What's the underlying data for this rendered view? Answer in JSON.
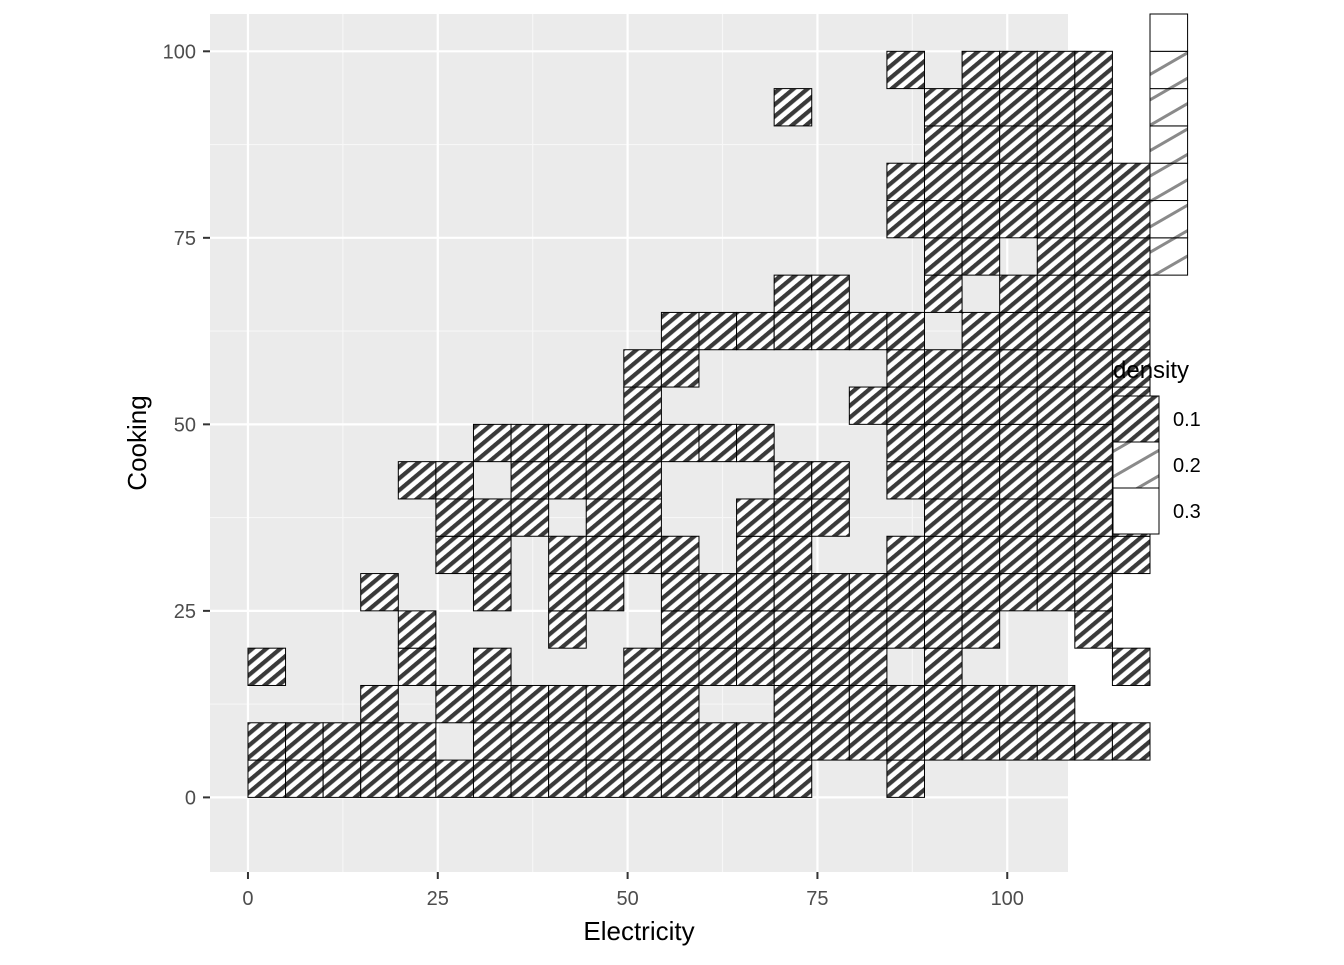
{
  "chart_data": {
    "type": "heatmap",
    "title": "",
    "xlabel": "Electricity",
    "ylabel": "Cooking",
    "xlim": [
      -5,
      108
    ],
    "ylim": [
      -10,
      105
    ],
    "x_ticks": [
      0,
      25,
      50,
      75,
      100
    ],
    "y_ticks": [
      0,
      25,
      50,
      75,
      100
    ],
    "x_tick_labels": [
      "0",
      "25",
      "50",
      "75",
      "100"
    ],
    "y_tick_labels": [
      "0",
      "25",
      "50",
      "75",
      "100"
    ],
    "grid": true,
    "bin_width_x": 4.95,
    "bin_height_y": 5,
    "x_origin": 0,
    "y_origin": 0,
    "fill_pattern": "stripe",
    "legend": {
      "title": "density",
      "position": "right",
      "entries": [
        {
          "label": "0.1",
          "pattern": "stripe-dense"
        },
        {
          "label": "0.2",
          "pattern": "stripe-sparse"
        },
        {
          "label": "0.3",
          "pattern": "none"
        }
      ]
    },
    "notes": "Each cell is a 2D bin of (Electricity, Cooking). Cells listed by column index ci (x from ci*4.95) and row index ri (y from ri*5). density: 0.1 = dense stripes, 0.2 = sparse stripes, 0.3 = empty white.",
    "cells": [
      {
        "ci": 0,
        "ri": 0,
        "density": 0.1
      },
      {
        "ci": 0,
        "ri": 1,
        "density": 0.1
      },
      {
        "ci": 0,
        "ri": 3,
        "density": 0.1
      },
      {
        "ci": 1,
        "ri": 0,
        "density": 0.1
      },
      {
        "ci": 1,
        "ri": 1,
        "density": 0.1
      },
      {
        "ci": 2,
        "ri": 0,
        "density": 0.1
      },
      {
        "ci": 2,
        "ri": 1,
        "density": 0.1
      },
      {
        "ci": 3,
        "ri": 0,
        "density": 0.1
      },
      {
        "ci": 3,
        "ri": 1,
        "density": 0.1
      },
      {
        "ci": 3,
        "ri": 2,
        "density": 0.1
      },
      {
        "ci": 3,
        "ri": 5,
        "density": 0.1
      },
      {
        "ci": 4,
        "ri": 0,
        "density": 0.1
      },
      {
        "ci": 4,
        "ri": 1,
        "density": 0.1
      },
      {
        "ci": 4,
        "ri": 3,
        "density": 0.1
      },
      {
        "ci": 4,
        "ri": 4,
        "density": 0.1
      },
      {
        "ci": 4,
        "ri": 8,
        "density": 0.1
      },
      {
        "ci": 5,
        "ri": 0,
        "density": 0.1
      },
      {
        "ci": 5,
        "ri": 2,
        "density": 0.1
      },
      {
        "ci": 5,
        "ri": 6,
        "density": 0.1
      },
      {
        "ci": 5,
        "ri": 7,
        "density": 0.1
      },
      {
        "ci": 5,
        "ri": 8,
        "density": 0.1
      },
      {
        "ci": 6,
        "ri": 0,
        "density": 0.1
      },
      {
        "ci": 6,
        "ri": 1,
        "density": 0.1
      },
      {
        "ci": 6,
        "ri": 2,
        "density": 0.1
      },
      {
        "ci": 6,
        "ri": 3,
        "density": 0.1
      },
      {
        "ci": 6,
        "ri": 5,
        "density": 0.1
      },
      {
        "ci": 6,
        "ri": 6,
        "density": 0.1
      },
      {
        "ci": 6,
        "ri": 7,
        "density": 0.1
      },
      {
        "ci": 6,
        "ri": 9,
        "density": 0.1
      },
      {
        "ci": 7,
        "ri": 0,
        "density": 0.1
      },
      {
        "ci": 7,
        "ri": 1,
        "density": 0.1
      },
      {
        "ci": 7,
        "ri": 2,
        "density": 0.1
      },
      {
        "ci": 7,
        "ri": 7,
        "density": 0.1
      },
      {
        "ci": 7,
        "ri": 8,
        "density": 0.1
      },
      {
        "ci": 7,
        "ri": 9,
        "density": 0.1
      },
      {
        "ci": 8,
        "ri": 0,
        "density": 0.1
      },
      {
        "ci": 8,
        "ri": 1,
        "density": 0.1
      },
      {
        "ci": 8,
        "ri": 2,
        "density": 0.1
      },
      {
        "ci": 8,
        "ri": 4,
        "density": 0.1
      },
      {
        "ci": 8,
        "ri": 5,
        "density": 0.1
      },
      {
        "ci": 8,
        "ri": 6,
        "density": 0.1
      },
      {
        "ci": 8,
        "ri": 8,
        "density": 0.1
      },
      {
        "ci": 8,
        "ri": 9,
        "density": 0.1
      },
      {
        "ci": 9,
        "ri": 0,
        "density": 0.1
      },
      {
        "ci": 9,
        "ri": 1,
        "density": 0.1
      },
      {
        "ci": 9,
        "ri": 2,
        "density": 0.1
      },
      {
        "ci": 9,
        "ri": 5,
        "density": 0.1
      },
      {
        "ci": 9,
        "ri": 6,
        "density": 0.1
      },
      {
        "ci": 9,
        "ri": 7,
        "density": 0.1
      },
      {
        "ci": 9,
        "ri": 8,
        "density": 0.1
      },
      {
        "ci": 9,
        "ri": 9,
        "density": 0.1
      },
      {
        "ci": 10,
        "ri": 0,
        "density": 0.1
      },
      {
        "ci": 10,
        "ri": 1,
        "density": 0.1
      },
      {
        "ci": 10,
        "ri": 2,
        "density": 0.1
      },
      {
        "ci": 10,
        "ri": 3,
        "density": 0.1
      },
      {
        "ci": 10,
        "ri": 6,
        "density": 0.1
      },
      {
        "ci": 10,
        "ri": 7,
        "density": 0.1
      },
      {
        "ci": 10,
        "ri": 8,
        "density": 0.1
      },
      {
        "ci": 10,
        "ri": 9,
        "density": 0.1
      },
      {
        "ci": 10,
        "ri": 10,
        "density": 0.1
      },
      {
        "ci": 10,
        "ri": 11,
        "density": 0.1
      },
      {
        "ci": 11,
        "ri": 0,
        "density": 0.1
      },
      {
        "ci": 11,
        "ri": 1,
        "density": 0.1
      },
      {
        "ci": 11,
        "ri": 2,
        "density": 0.1
      },
      {
        "ci": 11,
        "ri": 3,
        "density": 0.1
      },
      {
        "ci": 11,
        "ri": 4,
        "density": 0.1
      },
      {
        "ci": 11,
        "ri": 5,
        "density": 0.1
      },
      {
        "ci": 11,
        "ri": 6,
        "density": 0.1
      },
      {
        "ci": 11,
        "ri": 9,
        "density": 0.1
      },
      {
        "ci": 11,
        "ri": 11,
        "density": 0.1
      },
      {
        "ci": 11,
        "ri": 12,
        "density": 0.1
      },
      {
        "ci": 12,
        "ri": 0,
        "density": 0.1
      },
      {
        "ci": 12,
        "ri": 1,
        "density": 0.1
      },
      {
        "ci": 12,
        "ri": 3,
        "density": 0.1
      },
      {
        "ci": 12,
        "ri": 4,
        "density": 0.1
      },
      {
        "ci": 12,
        "ri": 5,
        "density": 0.1
      },
      {
        "ci": 12,
        "ri": 9,
        "density": 0.1
      },
      {
        "ci": 12,
        "ri": 12,
        "density": 0.1
      },
      {
        "ci": 13,
        "ri": 0,
        "density": 0.1
      },
      {
        "ci": 13,
        "ri": 1,
        "density": 0.1
      },
      {
        "ci": 13,
        "ri": 3,
        "density": 0.1
      },
      {
        "ci": 13,
        "ri": 4,
        "density": 0.1
      },
      {
        "ci": 13,
        "ri": 5,
        "density": 0.1
      },
      {
        "ci": 13,
        "ri": 6,
        "density": 0.1
      },
      {
        "ci": 13,
        "ri": 7,
        "density": 0.1
      },
      {
        "ci": 13,
        "ri": 9,
        "density": 0.1
      },
      {
        "ci": 13,
        "ri": 12,
        "density": 0.1
      },
      {
        "ci": 14,
        "ri": 0,
        "density": 0.1
      },
      {
        "ci": 14,
        "ri": 1,
        "density": 0.1
      },
      {
        "ci": 14,
        "ri": 2,
        "density": 0.1
      },
      {
        "ci": 14,
        "ri": 3,
        "density": 0.1
      },
      {
        "ci": 14,
        "ri": 4,
        "density": 0.1
      },
      {
        "ci": 14,
        "ri": 5,
        "density": 0.1
      },
      {
        "ci": 14,
        "ri": 6,
        "density": 0.1
      },
      {
        "ci": 14,
        "ri": 7,
        "density": 0.1
      },
      {
        "ci": 14,
        "ri": 8,
        "density": 0.1
      },
      {
        "ci": 14,
        "ri": 12,
        "density": 0.1
      },
      {
        "ci": 14,
        "ri": 13,
        "density": 0.1
      },
      {
        "ci": 14,
        "ri": 18,
        "density": 0.1
      },
      {
        "ci": 15,
        "ri": 1,
        "density": 0.1
      },
      {
        "ci": 15,
        "ri": 2,
        "density": 0.1
      },
      {
        "ci": 15,
        "ri": 3,
        "density": 0.1
      },
      {
        "ci": 15,
        "ri": 4,
        "density": 0.1
      },
      {
        "ci": 15,
        "ri": 5,
        "density": 0.1
      },
      {
        "ci": 15,
        "ri": 7,
        "density": 0.1
      },
      {
        "ci": 15,
        "ri": 8,
        "density": 0.1
      },
      {
        "ci": 15,
        "ri": 12,
        "density": 0.1
      },
      {
        "ci": 15,
        "ri": 13,
        "density": 0.1
      },
      {
        "ci": 16,
        "ri": 1,
        "density": 0.1
      },
      {
        "ci": 16,
        "ri": 2,
        "density": 0.1
      },
      {
        "ci": 16,
        "ri": 3,
        "density": 0.1
      },
      {
        "ci": 16,
        "ri": 4,
        "density": 0.1
      },
      {
        "ci": 16,
        "ri": 5,
        "density": 0.1
      },
      {
        "ci": 16,
        "ri": 10,
        "density": 0.1
      },
      {
        "ci": 16,
        "ri": 12,
        "density": 0.1
      },
      {
        "ci": 17,
        "ri": 0,
        "density": 0.1
      },
      {
        "ci": 17,
        "ri": 1,
        "density": 0.1
      },
      {
        "ci": 17,
        "ri": 2,
        "density": 0.1
      },
      {
        "ci": 17,
        "ri": 4,
        "density": 0.1
      },
      {
        "ci": 17,
        "ri": 5,
        "density": 0.1
      },
      {
        "ci": 17,
        "ri": 6,
        "density": 0.1
      },
      {
        "ci": 17,
        "ri": 8,
        "density": 0.1
      },
      {
        "ci": 17,
        "ri": 9,
        "density": 0.1
      },
      {
        "ci": 17,
        "ri": 10,
        "density": 0.1
      },
      {
        "ci": 17,
        "ri": 11,
        "density": 0.1
      },
      {
        "ci": 17,
        "ri": 12,
        "density": 0.1
      },
      {
        "ci": 17,
        "ri": 15,
        "density": 0.1
      },
      {
        "ci": 17,
        "ri": 16,
        "density": 0.1
      },
      {
        "ci": 17,
        "ri": 19,
        "density": 0.1
      },
      {
        "ci": 18,
        "ri": 1,
        "density": 0.1
      },
      {
        "ci": 18,
        "ri": 2,
        "density": 0.1
      },
      {
        "ci": 18,
        "ri": 3,
        "density": 0.1
      },
      {
        "ci": 18,
        "ri": 4,
        "density": 0.1
      },
      {
        "ci": 18,
        "ri": 5,
        "density": 0.1
      },
      {
        "ci": 18,
        "ri": 6,
        "density": 0.1
      },
      {
        "ci": 18,
        "ri": 7,
        "density": 0.1
      },
      {
        "ci": 18,
        "ri": 8,
        "density": 0.1
      },
      {
        "ci": 18,
        "ri": 9,
        "density": 0.1
      },
      {
        "ci": 18,
        "ri": 10,
        "density": 0.1
      },
      {
        "ci": 18,
        "ri": 11,
        "density": 0.1
      },
      {
        "ci": 18,
        "ri": 13,
        "density": 0.1
      },
      {
        "ci": 18,
        "ri": 14,
        "density": 0.1
      },
      {
        "ci": 18,
        "ri": 15,
        "density": 0.1
      },
      {
        "ci": 18,
        "ri": 16,
        "density": 0.1
      },
      {
        "ci": 18,
        "ri": 17,
        "density": 0.1
      },
      {
        "ci": 18,
        "ri": 18,
        "density": 0.1
      },
      {
        "ci": 19,
        "ri": 1,
        "density": 0.1
      },
      {
        "ci": 19,
        "ri": 2,
        "density": 0.1
      },
      {
        "ci": 19,
        "ri": 4,
        "density": 0.1
      },
      {
        "ci": 19,
        "ri": 5,
        "density": 0.1
      },
      {
        "ci": 19,
        "ri": 6,
        "density": 0.1
      },
      {
        "ci": 19,
        "ri": 7,
        "density": 0.1
      },
      {
        "ci": 19,
        "ri": 8,
        "density": 0.1
      },
      {
        "ci": 19,
        "ri": 9,
        "density": 0.1
      },
      {
        "ci": 19,
        "ri": 10,
        "density": 0.1
      },
      {
        "ci": 19,
        "ri": 11,
        "density": 0.1
      },
      {
        "ci": 19,
        "ri": 12,
        "density": 0.1
      },
      {
        "ci": 19,
        "ri": 14,
        "density": 0.1
      },
      {
        "ci": 19,
        "ri": 15,
        "density": 0.1
      },
      {
        "ci": 19,
        "ri": 16,
        "density": 0.1
      },
      {
        "ci": 19,
        "ri": 17,
        "density": 0.1
      },
      {
        "ci": 19,
        "ri": 18,
        "density": 0.1
      },
      {
        "ci": 19,
        "ri": 19,
        "density": 0.1
      },
      {
        "ci": 20,
        "ri": 1,
        "density": 0.1
      },
      {
        "ci": 20,
        "ri": 2,
        "density": 0.1
      },
      {
        "ci": 20,
        "ri": 5,
        "density": 0.1
      },
      {
        "ci": 20,
        "ri": 6,
        "density": 0.1
      },
      {
        "ci": 20,
        "ri": 7,
        "density": 0.1
      },
      {
        "ci": 20,
        "ri": 8,
        "density": 0.1
      },
      {
        "ci": 20,
        "ri": 9,
        "density": 0.1
      },
      {
        "ci": 20,
        "ri": 10,
        "density": 0.1
      },
      {
        "ci": 20,
        "ri": 11,
        "density": 0.1
      },
      {
        "ci": 20,
        "ri": 12,
        "density": 0.1
      },
      {
        "ci": 20,
        "ri": 13,
        "density": 0.1
      },
      {
        "ci": 20,
        "ri": 15,
        "density": 0.1
      },
      {
        "ci": 20,
        "ri": 16,
        "density": 0.1
      },
      {
        "ci": 20,
        "ri": 17,
        "density": 0.1
      },
      {
        "ci": 20,
        "ri": 18,
        "density": 0.1
      },
      {
        "ci": 20,
        "ri": 19,
        "density": 0.1
      },
      {
        "ci": 21,
        "ri": 1,
        "density": 0.1
      },
      {
        "ci": 21,
        "ri": 2,
        "density": 0.1
      },
      {
        "ci": 21,
        "ri": 5,
        "density": 0.1
      },
      {
        "ci": 21,
        "ri": 6,
        "density": 0.1
      },
      {
        "ci": 21,
        "ri": 7,
        "density": 0.1
      },
      {
        "ci": 21,
        "ri": 8,
        "density": 0.1
      },
      {
        "ci": 21,
        "ri": 9,
        "density": 0.1
      },
      {
        "ci": 21,
        "ri": 10,
        "density": 0.1
      },
      {
        "ci": 21,
        "ri": 11,
        "density": 0.1
      },
      {
        "ci": 21,
        "ri": 12,
        "density": 0.1
      },
      {
        "ci": 21,
        "ri": 13,
        "density": 0.1
      },
      {
        "ci": 21,
        "ri": 14,
        "density": 0.1
      },
      {
        "ci": 21,
        "ri": 15,
        "density": 0.1
      },
      {
        "ci": 21,
        "ri": 16,
        "density": 0.1
      },
      {
        "ci": 21,
        "ri": 17,
        "density": 0.1
      },
      {
        "ci": 21,
        "ri": 18,
        "density": 0.1
      },
      {
        "ci": 21,
        "ri": 19,
        "density": 0.1
      },
      {
        "ci": 22,
        "ri": 1,
        "density": 0.1
      },
      {
        "ci": 22,
        "ri": 4,
        "density": 0.1
      },
      {
        "ci": 22,
        "ri": 5,
        "density": 0.1
      },
      {
        "ci": 22,
        "ri": 6,
        "density": 0.1
      },
      {
        "ci": 22,
        "ri": 7,
        "density": 0.1
      },
      {
        "ci": 22,
        "ri": 8,
        "density": 0.1
      },
      {
        "ci": 22,
        "ri": 9,
        "density": 0.1
      },
      {
        "ci": 22,
        "ri": 10,
        "density": 0.1
      },
      {
        "ci": 22,
        "ri": 11,
        "density": 0.1
      },
      {
        "ci": 22,
        "ri": 12,
        "density": 0.1
      },
      {
        "ci": 22,
        "ri": 13,
        "density": 0.1
      },
      {
        "ci": 22,
        "ri": 14,
        "density": 0.1
      },
      {
        "ci": 22,
        "ri": 15,
        "density": 0.1
      },
      {
        "ci": 22,
        "ri": 16,
        "density": 0.1
      },
      {
        "ci": 22,
        "ri": 17,
        "density": 0.1
      },
      {
        "ci": 22,
        "ri": 18,
        "density": 0.1
      },
      {
        "ci": 22,
        "ri": 19,
        "density": 0.1
      },
      {
        "ci": 23,
        "ri": 1,
        "density": 0.1
      },
      {
        "ci": 23,
        "ri": 3,
        "density": 0.1
      },
      {
        "ci": 23,
        "ri": 6,
        "density": 0.1
      },
      {
        "ci": 23,
        "ri": 7,
        "density": 0.1
      },
      {
        "ci": 23,
        "ri": 8,
        "density": 0.1
      },
      {
        "ci": 23,
        "ri": 9,
        "density": 0.1
      },
      {
        "ci": 23,
        "ri": 10,
        "density": 0.1
      },
      {
        "ci": 23,
        "ri": 11,
        "density": 0.1
      },
      {
        "ci": 23,
        "ri": 12,
        "density": 0.1
      },
      {
        "ci": 23,
        "ri": 13,
        "density": 0.1
      },
      {
        "ci": 23,
        "ri": 14,
        "density": 0.1
      },
      {
        "ci": 23,
        "ri": 15,
        "density": 0.1
      },
      {
        "ci": 23,
        "ri": 16,
        "density": 0.1
      },
      {
        "ci": 24,
        "ri": 14,
        "density": 0.2
      },
      {
        "ci": 24,
        "ri": 15,
        "density": 0.2
      },
      {
        "ci": 24,
        "ri": 16,
        "density": 0.2
      },
      {
        "ci": 24,
        "ri": 17,
        "density": 0.2
      },
      {
        "ci": 24,
        "ri": 18,
        "density": 0.2
      },
      {
        "ci": 24,
        "ri": 19,
        "density": 0.2
      },
      {
        "ci": 24,
        "ri": 20,
        "density": 0.3
      }
    ]
  }
}
